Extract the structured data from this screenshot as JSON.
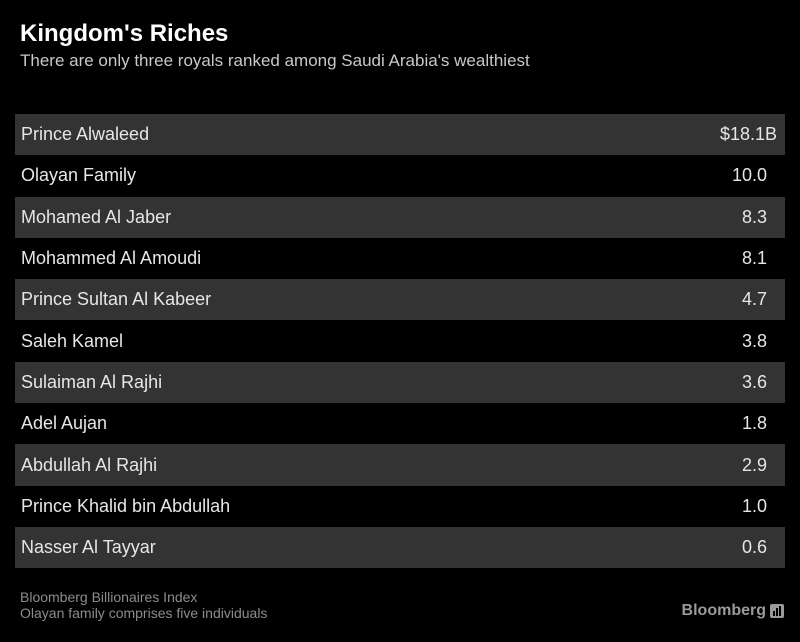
{
  "header": {
    "title": "Kingdom's Riches",
    "subtitle": "There are only three royals ranked among Saudi Arabia's wealthiest"
  },
  "table": {
    "rows": [
      [
        "Prince Alwaleed",
        "$18.1B"
      ],
      [
        "Olayan Family",
        "10.0"
      ],
      [
        "Mohamed Al Jaber",
        "8.3"
      ],
      [
        "Mohammed Al Amoudi",
        "8.1"
      ],
      [
        "Prince Sultan Al Kabeer",
        "4.7"
      ],
      [
        "Saleh Kamel",
        "3.8"
      ],
      [
        "Sulaiman Al Rajhi",
        "3.6"
      ],
      [
        "Adel Aujan",
        "1.8"
      ],
      [
        "Abdullah Al Rajhi",
        "2.9"
      ],
      [
        "Prince Khalid bin Abdullah",
        "1.0"
      ],
      [
        "Nasser Al Tayyar",
        "0.6"
      ]
    ]
  },
  "footer": {
    "source": "Bloomberg Billionaires Index",
    "note": "Olayan family comprises five individuals",
    "brand": "Bloomberg"
  }
}
